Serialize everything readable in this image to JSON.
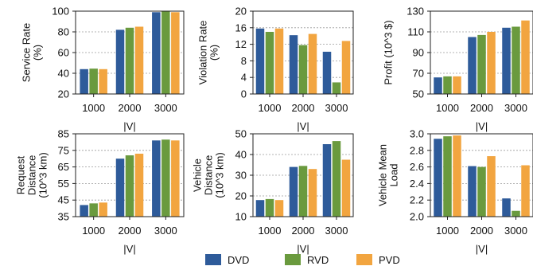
{
  "colors": {
    "DVD": "#2e5b9a",
    "RVD": "#6a9a3e",
    "PVD": "#f2a540",
    "grid": "#9a9a9a",
    "axis": "#222222"
  },
  "legend": {
    "items": [
      {
        "label": "DVD",
        "color": "#2e5b9a"
      },
      {
        "label": "RVD",
        "color": "#6a9a3e"
      },
      {
        "label": "PVD",
        "color": "#f2a540"
      }
    ]
  },
  "chart_data": [
    {
      "type": "bar",
      "title": "",
      "xlabel": "|V|",
      "ylabel": [
        "Service Rate",
        "(%)"
      ],
      "categories": [
        "1000",
        "2000",
        "3000"
      ],
      "ylim": [
        20,
        100
      ],
      "yticks": [
        "20",
        "40",
        "60",
        "80",
        "100"
      ],
      "series": [
        {
          "name": "DVD",
          "values": [
            44,
            82,
            99
          ]
        },
        {
          "name": "RVD",
          "values": [
            44.5,
            84,
            100
          ]
        },
        {
          "name": "PVD",
          "values": [
            44,
            85,
            99
          ]
        }
      ]
    },
    {
      "type": "bar",
      "title": "",
      "xlabel": "|V|",
      "ylabel": [
        "Violation Rate",
        "(%)"
      ],
      "categories": [
        "1000",
        "2000",
        "3000"
      ],
      "ylim": [
        0,
        20
      ],
      "yticks": [
        "0",
        "4",
        "8",
        "12",
        "16",
        "20"
      ],
      "series": [
        {
          "name": "DVD",
          "values": [
            15.8,
            14.2,
            10.2
          ]
        },
        {
          "name": "RVD",
          "values": [
            15.0,
            11.8,
            2.8
          ]
        },
        {
          "name": "PVD",
          "values": [
            15.8,
            14.5,
            12.8
          ]
        }
      ]
    },
    {
      "type": "bar",
      "title": "",
      "xlabel": "|V|",
      "ylabel": [
        "Profit (10^3 $)"
      ],
      "categories": [
        "1000",
        "2000",
        "3000"
      ],
      "ylim": [
        50,
        130
      ],
      "yticks": [
        "50",
        "70",
        "90",
        "110",
        "130"
      ],
      "series": [
        {
          "name": "DVD",
          "values": [
            66,
            105,
            114
          ]
        },
        {
          "name": "RVD",
          "values": [
            67,
            107,
            115
          ]
        },
        {
          "name": "PVD",
          "values": [
            67,
            110,
            121
          ]
        }
      ]
    },
    {
      "type": "bar",
      "title": "",
      "xlabel": "|V|",
      "ylabel": [
        "Request",
        "Distance",
        "(10^3 km)"
      ],
      "categories": [
        "1000",
        "2000",
        "3000"
      ],
      "ylim": [
        35,
        85
      ],
      "yticks": [
        "35",
        "45",
        "55",
        "65",
        "75",
        "85"
      ],
      "series": [
        {
          "name": "DVD",
          "values": [
            42,
            70,
            81
          ]
        },
        {
          "name": "RVD",
          "values": [
            43,
            72,
            81.5
          ]
        },
        {
          "name": "PVD",
          "values": [
            43.5,
            73,
            81
          ]
        }
      ]
    },
    {
      "type": "bar",
      "title": "",
      "xlabel": "|V|",
      "ylabel": [
        "Vehicle",
        "Distance",
        "(10^3 km)"
      ],
      "categories": [
        "1000",
        "2000",
        "3000"
      ],
      "ylim": [
        10,
        50
      ],
      "yticks": [
        "10",
        "20",
        "30",
        "40",
        "50"
      ],
      "series": [
        {
          "name": "DVD",
          "values": [
            18,
            34,
            45
          ]
        },
        {
          "name": "RVD",
          "values": [
            18.5,
            34.5,
            46.5
          ]
        },
        {
          "name": "PVD",
          "values": [
            18,
            33,
            37.5
          ]
        }
      ]
    },
    {
      "type": "bar",
      "title": "",
      "xlabel": "|V|",
      "ylabel": [
        "Vehicle Mean",
        "Load"
      ],
      "categories": [
        "1000",
        "2000",
        "3000"
      ],
      "ylim": [
        2.0,
        3.0
      ],
      "yticks": [
        "2.0",
        "2.2",
        "2.4",
        "2.6",
        "2.8",
        "3.0"
      ],
      "series": [
        {
          "name": "DVD",
          "values": [
            2.94,
            2.61,
            2.22
          ]
        },
        {
          "name": "RVD",
          "values": [
            2.97,
            2.6,
            2.07
          ]
        },
        {
          "name": "PVD",
          "values": [
            2.98,
            2.73,
            2.62
          ]
        }
      ]
    }
  ]
}
